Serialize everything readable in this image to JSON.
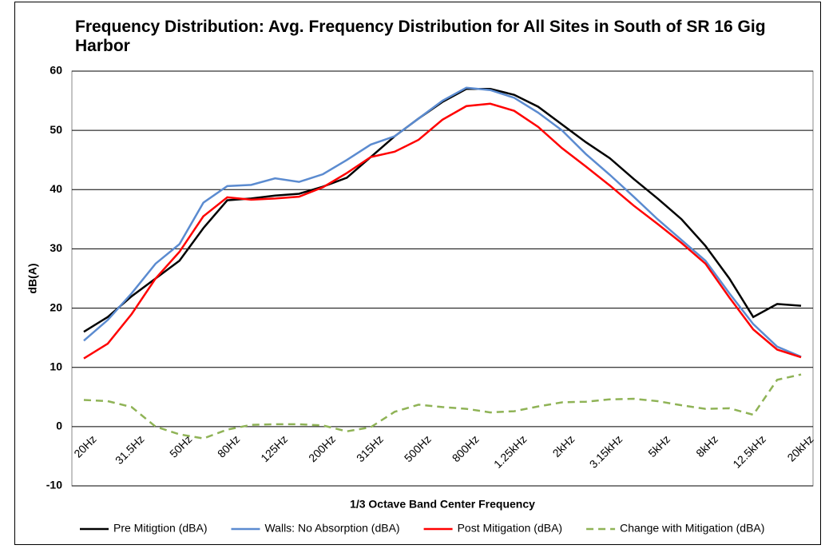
{
  "chart_data": {
    "type": "line",
    "title": "Frequency Distribution: Avg. Frequency Distribution for All Sites in South of SR 16 Gig Harbor",
    "x_label": "1/3 Octave Band Center Frequency",
    "y_label": "dB(A)",
    "categories": [
      "20Hz",
      null,
      "31.5Hz",
      null,
      "50Hz",
      null,
      "80Hz",
      null,
      "125Hz",
      null,
      "200Hz",
      null,
      "315Hz",
      null,
      "500Hz",
      null,
      "800Hz",
      null,
      "1.25kHz",
      null,
      "2kHz",
      null,
      "3.15kHz",
      null,
      "5kHz",
      null,
      "8kHz",
      null,
      "12.5kHz",
      null,
      "20kHz"
    ],
    "ylim": [
      -10,
      60
    ],
    "yticks": [
      -10,
      0,
      10,
      20,
      30,
      40,
      50,
      60
    ],
    "grid": true,
    "legend": "bottom",
    "series": [
      {
        "name": "Pre Mitigtion (dBA)",
        "color": "#000000",
        "style": "solid",
        "values": [
          16,
          18.5,
          22,
          25,
          28,
          33.5,
          38.2,
          38.5,
          39,
          39.3,
          40.5,
          42,
          45.5,
          49,
          52,
          54.8,
          57,
          57,
          56,
          54,
          51,
          48,
          45.3,
          41.8,
          38.5,
          35,
          30.5,
          25,
          18.5,
          20.7,
          20.4
        ]
      },
      {
        "name": "Walls: No Absorption (dBA)",
        "color": "#5b8bd0",
        "style": "solid",
        "values": [
          14.5,
          18,
          22.5,
          27.5,
          30.8,
          37.8,
          40.6,
          40.8,
          41.9,
          41.3,
          42.6,
          45,
          47.6,
          49,
          52,
          55,
          57.2,
          56.8,
          55.5,
          53,
          50,
          46,
          42.5,
          38.8,
          35,
          31.5,
          28,
          22.5,
          17.3,
          13.5,
          11.8
        ]
      },
      {
        "name": "Post Mitigation  (dBA)",
        "color": "#ff0000",
        "style": "solid",
        "values": [
          11.5,
          14,
          19,
          25,
          29.5,
          35.5,
          38.7,
          38.3,
          38.5,
          38.8,
          40.4,
          42.8,
          45.5,
          46.4,
          48.4,
          51.8,
          54.1,
          54.5,
          53.3,
          50.6,
          47,
          43.9,
          40.7,
          37.3,
          34.2,
          31,
          27.5,
          21.8,
          16.4,
          13,
          11.7
        ]
      },
      {
        "name": "Change with Mitigation (dBA)",
        "color": "#8fb356",
        "style": "dashed",
        "values": [
          4.5,
          4.3,
          3.3,
          0,
          -1.3,
          -2,
          -0.5,
          0.3,
          0.4,
          0.4,
          0.2,
          -0.8,
          -0.1,
          2.5,
          3.7,
          3.3,
          3,
          2.4,
          2.6,
          3.4,
          4.1,
          4.2,
          4.6,
          4.7,
          4.3,
          3.6,
          3,
          3.1,
          2,
          7.9,
          8.8
        ]
      }
    ]
  }
}
